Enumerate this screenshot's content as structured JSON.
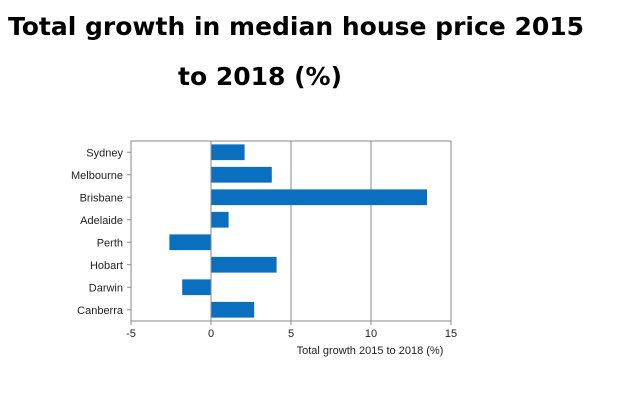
{
  "title_parts": [
    "Total growth in median house price 2015",
    "to 2018 (%)"
  ],
  "chart_data": {
    "type": "bar",
    "orientation": "horizontal",
    "title": "Total growth in median house price 2015 to 2018 (%)",
    "categories": [
      "Sydney",
      "Melbourne",
      "Brisbane",
      "Adelaide",
      "Perth",
      "Hobart",
      "Darwin",
      "Canberra"
    ],
    "values": [
      2.1,
      3.8,
      13.5,
      1.1,
      -2.6,
      4.1,
      -1.8,
      2.7
    ],
    "xlabel": "Total growth  2015 to 2018  (%)",
    "ylabel": "",
    "xlim": [
      -5,
      15
    ],
    "xticks": [
      -5,
      0,
      5,
      10,
      15
    ],
    "xtick_labels": [
      "-5",
      "0",
      "5",
      "10",
      "15"
    ],
    "grid": true,
    "legend": "none",
    "bar_color": "#0b6fc0",
    "axis_color": "#8a8a8a"
  }
}
